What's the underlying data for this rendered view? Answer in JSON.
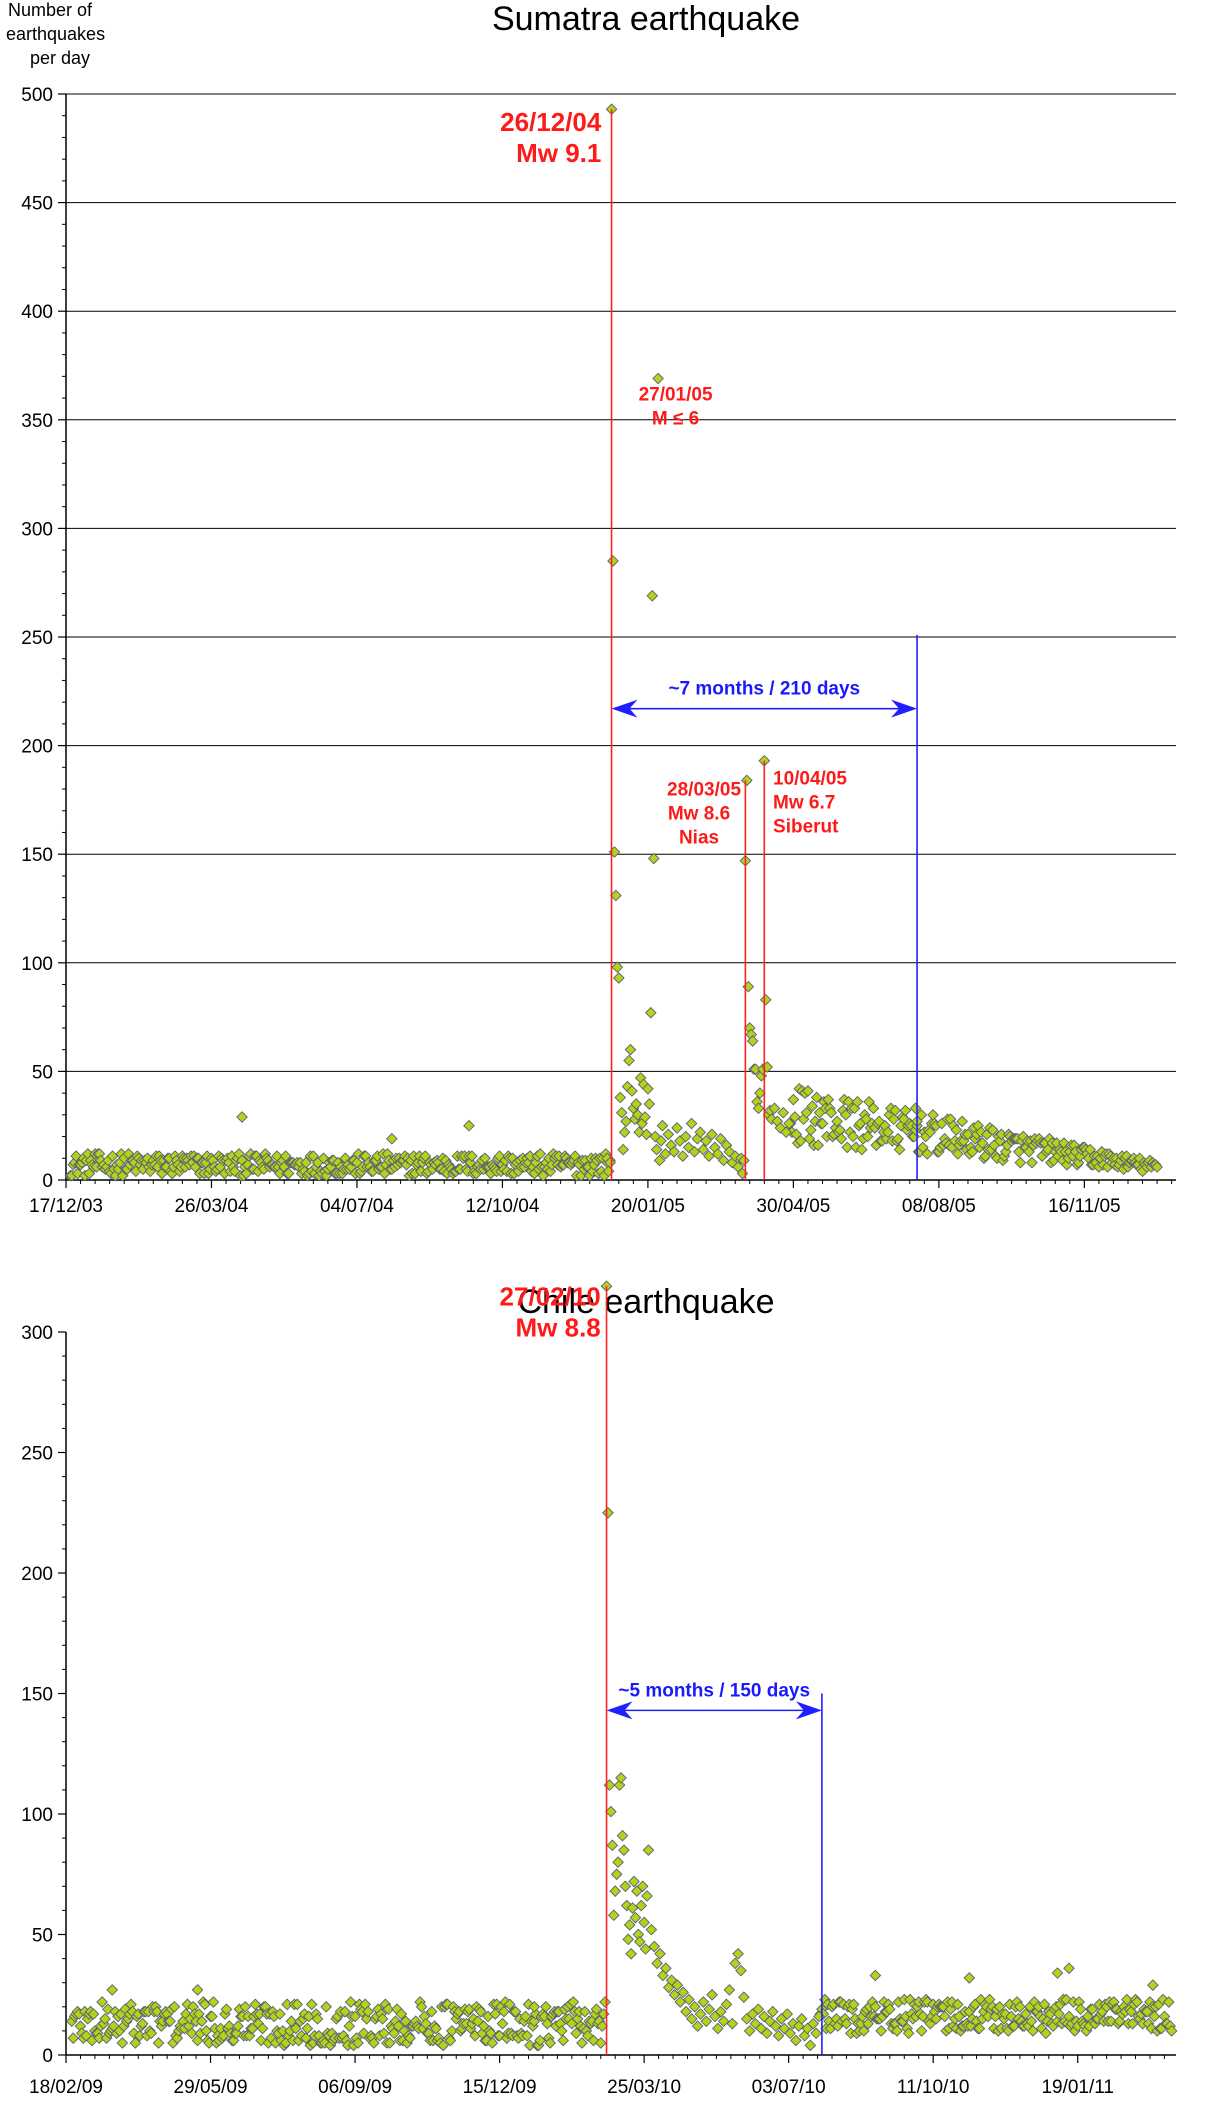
{
  "ylabel_lines": [
    "Number of",
    "earthquakes",
    "per day"
  ],
  "colors": {
    "marker_fill": "#b5d118",
    "marker_stroke": "#55607a",
    "event_line": "#ff2020",
    "window_line": "#2020ff",
    "grid": "#000000"
  },
  "chart_data": [
    {
      "type": "scatter",
      "title": "Sumatra earthquake",
      "x_start": "2003-12-17",
      "x_end": "2006-01-18",
      "xticks": [
        {
          "date": "2003-12-17",
          "label": "17/12/03"
        },
        {
          "date": "2004-03-26",
          "label": "26/03/04"
        },
        {
          "date": "2004-07-04",
          "label": "04/07/04"
        },
        {
          "date": "2004-10-12",
          "label": "12/10/04"
        },
        {
          "date": "2005-01-20",
          "label": "20/01/05"
        },
        {
          "date": "2005-04-30",
          "label": "30/04/05"
        },
        {
          "date": "2005-08-08",
          "label": "08/08/05"
        },
        {
          "date": "2005-11-16",
          "label": "16/11/05"
        }
      ],
      "ylim": [
        0,
        500
      ],
      "yticks": [
        0,
        50,
        100,
        150,
        200,
        250,
        300,
        350,
        400,
        450,
        500
      ],
      "grid": true,
      "baseline": {
        "from": "2003-12-20",
        "to": "2004-12-25",
        "min": 2,
        "max": 12
      },
      "aftershock_tail": {
        "from": "2005-04-28",
        "to": "2006-01-05",
        "start_level": 30,
        "end_level": 6
      },
      "points": [
        {
          "date": "2004-04-16",
          "value": 29
        },
        {
          "date": "2004-07-28",
          "value": 19
        },
        {
          "date": "2004-09-19",
          "value": 25
        },
        {
          "date": "2004-12-23",
          "value": 10
        },
        {
          "date": "2004-12-25",
          "value": 8
        },
        {
          "date": "2004-12-26",
          "value": 493
        },
        {
          "date": "2004-12-27",
          "value": 285
        },
        {
          "date": "2004-12-28",
          "value": 151
        },
        {
          "date": "2004-12-29",
          "value": 131
        },
        {
          "date": "2004-12-30",
          "value": 98
        },
        {
          "date": "2004-12-31",
          "value": 93
        },
        {
          "date": "2005-01-01",
          "value": 38
        },
        {
          "date": "2005-01-02",
          "value": 31
        },
        {
          "date": "2005-01-03",
          "value": 14
        },
        {
          "date": "2005-01-04",
          "value": 22
        },
        {
          "date": "2005-01-05",
          "value": 27
        },
        {
          "date": "2005-01-06",
          "value": 43
        },
        {
          "date": "2005-01-07",
          "value": 55
        },
        {
          "date": "2005-01-08",
          "value": 60
        },
        {
          "date": "2005-01-09",
          "value": 41
        },
        {
          "date": "2005-01-10",
          "value": 33
        },
        {
          "date": "2005-01-11",
          "value": 28
        },
        {
          "date": "2005-01-12",
          "value": 35
        },
        {
          "date": "2005-01-13",
          "value": 30
        },
        {
          "date": "2005-01-14",
          "value": 22
        },
        {
          "date": "2005-01-15",
          "value": 47
        },
        {
          "date": "2005-01-16",
          "value": 26
        },
        {
          "date": "2005-01-17",
          "value": 44
        },
        {
          "date": "2005-01-18",
          "value": 29
        },
        {
          "date": "2005-01-19",
          "value": 21
        },
        {
          "date": "2005-01-20",
          "value": 42
        },
        {
          "date": "2005-01-21",
          "value": 35
        },
        {
          "date": "2005-01-22",
          "value": 77
        },
        {
          "date": "2005-01-23",
          "value": 269
        },
        {
          "date": "2005-01-24",
          "value": 148
        },
        {
          "date": "2005-01-25",
          "value": 20
        },
        {
          "date": "2005-01-26",
          "value": 14
        },
        {
          "date": "2005-01-27",
          "value": 369
        },
        {
          "date": "2005-01-28",
          "value": 9
        },
        {
          "date": "2005-01-29",
          "value": 18
        },
        {
          "date": "2005-01-30",
          "value": 25
        },
        {
          "date": "2005-02-01",
          "value": 12
        },
        {
          "date": "2005-02-03",
          "value": 21
        },
        {
          "date": "2005-02-05",
          "value": 16
        },
        {
          "date": "2005-02-07",
          "value": 13
        },
        {
          "date": "2005-02-09",
          "value": 24
        },
        {
          "date": "2005-02-11",
          "value": 18
        },
        {
          "date": "2005-02-13",
          "value": 11
        },
        {
          "date": "2005-02-15",
          "value": 20
        },
        {
          "date": "2005-02-17",
          "value": 15
        },
        {
          "date": "2005-02-19",
          "value": 26
        },
        {
          "date": "2005-02-21",
          "value": 13
        },
        {
          "date": "2005-02-23",
          "value": 19
        },
        {
          "date": "2005-02-25",
          "value": 22
        },
        {
          "date": "2005-02-27",
          "value": 14
        },
        {
          "date": "2005-03-01",
          "value": 18
        },
        {
          "date": "2005-03-03",
          "value": 11
        },
        {
          "date": "2005-03-05",
          "value": 21
        },
        {
          "date": "2005-03-07",
          "value": 15
        },
        {
          "date": "2005-03-09",
          "value": 12
        },
        {
          "date": "2005-03-11",
          "value": 19
        },
        {
          "date": "2005-03-13",
          "value": 9
        },
        {
          "date": "2005-03-15",
          "value": 16
        },
        {
          "date": "2005-03-17",
          "value": 13
        },
        {
          "date": "2005-03-19",
          "value": 8
        },
        {
          "date": "2005-03-21",
          "value": 11
        },
        {
          "date": "2005-03-23",
          "value": 6
        },
        {
          "date": "2005-03-25",
          "value": 10
        },
        {
          "date": "2005-03-26",
          "value": 3
        },
        {
          "date": "2005-03-27",
          "value": 9
        },
        {
          "date": "2005-03-28",
          "value": 147
        },
        {
          "date": "2005-03-29",
          "value": 184
        },
        {
          "date": "2005-03-30",
          "value": 89
        },
        {
          "date": "2005-03-31",
          "value": 70
        },
        {
          "date": "2005-04-01",
          "value": 67
        },
        {
          "date": "2005-04-02",
          "value": 64
        },
        {
          "date": "2005-04-03",
          "value": 51
        },
        {
          "date": "2005-04-04",
          "value": 51
        },
        {
          "date": "2005-04-05",
          "value": 36
        },
        {
          "date": "2005-04-06",
          "value": 33
        },
        {
          "date": "2005-04-07",
          "value": 40
        },
        {
          "date": "2005-04-08",
          "value": 48
        },
        {
          "date": "2005-04-09",
          "value": 51
        },
        {
          "date": "2005-04-10",
          "value": 193
        },
        {
          "date": "2005-04-11",
          "value": 83
        },
        {
          "date": "2005-04-12",
          "value": 52
        },
        {
          "date": "2005-04-13",
          "value": 30
        },
        {
          "date": "2005-04-14",
          "value": 32
        },
        {
          "date": "2005-04-15",
          "value": 28
        },
        {
          "date": "2005-04-17",
          "value": 33
        },
        {
          "date": "2005-04-19",
          "value": 27
        },
        {
          "date": "2005-04-21",
          "value": 24
        },
        {
          "date": "2005-04-23",
          "value": 31
        },
        {
          "date": "2005-04-25",
          "value": 22
        },
        {
          "date": "2005-04-27",
          "value": 26
        },
        {
          "date": "2005-07-23",
          "value": 33
        },
        {
          "date": "2005-07-24",
          "value": 27
        }
      ],
      "vertical_lines": [
        {
          "date": "2004-12-26",
          "top": 493,
          "kind": "event"
        },
        {
          "date": "2005-03-28",
          "top": 184,
          "kind": "event"
        },
        {
          "date": "2005-04-10",
          "top": 193,
          "kind": "event"
        },
        {
          "date": "2005-07-24",
          "top": 251,
          "kind": "window"
        }
      ],
      "window_arrow": {
        "from": "2004-12-26",
        "to": "2005-07-24",
        "value": 217,
        "label": "~7 months / 210 days"
      },
      "annotations": [
        {
          "lines": [
            "26/12/04",
            "Mw 9.1"
          ],
          "size": "big",
          "align": "end",
          "date": "2004-12-19",
          "value": 483
        },
        {
          "lines": [
            "27/01/05",
            "M ≤ 6"
          ],
          "size": "small",
          "align": "middle",
          "date": "2005-02-08",
          "value": 359
        },
        {
          "lines": [
            "28/03/05",
            "Mw 8.6",
            "Nias"
          ],
          "size": "small",
          "align": "end",
          "date": "2005-03-25",
          "value": 177
        },
        {
          "lines": [
            "10/04/05",
            "Mw 6.7",
            "Siberut"
          ],
          "size": "small",
          "align": "start",
          "date": "2005-04-16",
          "value": 182
        }
      ]
    },
    {
      "type": "scatter",
      "title": "Chile earthquake",
      "x_start": "2009-02-18",
      "x_end": "2011-03-28",
      "xticks": [
        {
          "date": "2009-02-18",
          "label": "18/02/09"
        },
        {
          "date": "2009-05-29",
          "label": "29/05/09"
        },
        {
          "date": "2009-09-06",
          "label": "06/09/09"
        },
        {
          "date": "2009-12-15",
          "label": "15/12/09"
        },
        {
          "date": "2010-03-25",
          "label": "25/03/10"
        },
        {
          "date": "2010-07-03",
          "label": "03/07/10"
        },
        {
          "date": "2010-10-11",
          "label": "11/10/10"
        },
        {
          "date": "2011-01-19",
          "label": "19/01/11"
        }
      ],
      "ylim": [
        0,
        300
      ],
      "yticks": [
        0,
        50,
        100,
        150,
        200,
        250,
        300
      ],
      "grid": false,
      "baseline": {
        "from": "2009-02-22",
        "to": "2010-02-26",
        "min": 4,
        "max": 22
      },
      "aftershock_tail": {
        "from": "2010-07-25",
        "to": "2011-03-25",
        "start_level": 16,
        "end_level": 16
      },
      "points": [
        {
          "date": "2009-03-22",
          "value": 27
        },
        {
          "date": "2009-05-20",
          "value": 27
        },
        {
          "date": "2010-01-08",
          "value": 20
        },
        {
          "date": "2010-02-27",
          "value": 319
        },
        {
          "date": "2010-02-28",
          "value": 225
        },
        {
          "date": "2010-03-01",
          "value": 112
        },
        {
          "date": "2010-03-02",
          "value": 101
        },
        {
          "date": "2010-03-03",
          "value": 87
        },
        {
          "date": "2010-03-04",
          "value": 58
        },
        {
          "date": "2010-03-05",
          "value": 68
        },
        {
          "date": "2010-03-06",
          "value": 75
        },
        {
          "date": "2010-03-07",
          "value": 80
        },
        {
          "date": "2010-03-08",
          "value": 112
        },
        {
          "date": "2010-03-09",
          "value": 115
        },
        {
          "date": "2010-03-10",
          "value": 91
        },
        {
          "date": "2010-03-11",
          "value": 85
        },
        {
          "date": "2010-03-12",
          "value": 70
        },
        {
          "date": "2010-03-13",
          "value": 62
        },
        {
          "date": "2010-03-14",
          "value": 48
        },
        {
          "date": "2010-03-15",
          "value": 54
        },
        {
          "date": "2010-03-16",
          "value": 42
        },
        {
          "date": "2010-03-17",
          "value": 61
        },
        {
          "date": "2010-03-18",
          "value": 72
        },
        {
          "date": "2010-03-19",
          "value": 57
        },
        {
          "date": "2010-03-20",
          "value": 68
        },
        {
          "date": "2010-03-21",
          "value": 50
        },
        {
          "date": "2010-03-22",
          "value": 47
        },
        {
          "date": "2010-03-23",
          "value": 62
        },
        {
          "date": "2010-03-24",
          "value": 70
        },
        {
          "date": "2010-03-25",
          "value": 55
        },
        {
          "date": "2010-03-26",
          "value": 44
        },
        {
          "date": "2010-03-27",
          "value": 66
        },
        {
          "date": "2010-03-28",
          "value": 85
        },
        {
          "date": "2010-03-30",
          "value": 52
        },
        {
          "date": "2010-04-01",
          "value": 45
        },
        {
          "date": "2010-04-03",
          "value": 38
        },
        {
          "date": "2010-04-05",
          "value": 42
        },
        {
          "date": "2010-04-07",
          "value": 33
        },
        {
          "date": "2010-04-09",
          "value": 36
        },
        {
          "date": "2010-04-11",
          "value": 28
        },
        {
          "date": "2010-04-13",
          "value": 31
        },
        {
          "date": "2010-04-15",
          "value": 25
        },
        {
          "date": "2010-04-17",
          "value": 29
        },
        {
          "date": "2010-04-19",
          "value": 22
        },
        {
          "date": "2010-04-21",
          "value": 26
        },
        {
          "date": "2010-04-23",
          "value": 18
        },
        {
          "date": "2010-04-25",
          "value": 23
        },
        {
          "date": "2010-04-27",
          "value": 15
        },
        {
          "date": "2010-04-29",
          "value": 20
        },
        {
          "date": "2010-05-01",
          "value": 12
        },
        {
          "date": "2010-05-03",
          "value": 17
        },
        {
          "date": "2010-05-05",
          "value": 22
        },
        {
          "date": "2010-05-07",
          "value": 14
        },
        {
          "date": "2010-05-09",
          "value": 19
        },
        {
          "date": "2010-05-11",
          "value": 25
        },
        {
          "date": "2010-05-13",
          "value": 16
        },
        {
          "date": "2010-05-15",
          "value": 11
        },
        {
          "date": "2010-05-17",
          "value": 18
        },
        {
          "date": "2010-05-19",
          "value": 14
        },
        {
          "date": "2010-05-21",
          "value": 21
        },
        {
          "date": "2010-05-23",
          "value": 27
        },
        {
          "date": "2010-05-25",
          "value": 13
        },
        {
          "date": "2010-05-27",
          "value": 38
        },
        {
          "date": "2010-05-29",
          "value": 42
        },
        {
          "date": "2010-05-31",
          "value": 35
        },
        {
          "date": "2010-06-02",
          "value": 24
        },
        {
          "date": "2010-06-04",
          "value": 15
        },
        {
          "date": "2010-06-06",
          "value": 10
        },
        {
          "date": "2010-06-08",
          "value": 17
        },
        {
          "date": "2010-06-10",
          "value": 13
        },
        {
          "date": "2010-06-12",
          "value": 19
        },
        {
          "date": "2010-06-14",
          "value": 11
        },
        {
          "date": "2010-06-16",
          "value": 16
        },
        {
          "date": "2010-06-18",
          "value": 9
        },
        {
          "date": "2010-06-20",
          "value": 14
        },
        {
          "date": "2010-06-22",
          "value": 18
        },
        {
          "date": "2010-06-24",
          "value": 12
        },
        {
          "date": "2010-06-26",
          "value": 8
        },
        {
          "date": "2010-06-28",
          "value": 15
        },
        {
          "date": "2010-06-30",
          "value": 11
        },
        {
          "date": "2010-07-02",
          "value": 17
        },
        {
          "date": "2010-07-04",
          "value": 9
        },
        {
          "date": "2010-07-06",
          "value": 13
        },
        {
          "date": "2010-07-08",
          "value": 6
        },
        {
          "date": "2010-07-10",
          "value": 12
        },
        {
          "date": "2010-07-12",
          "value": 15
        },
        {
          "date": "2010-07-14",
          "value": 8
        },
        {
          "date": "2010-07-16",
          "value": 11
        },
        {
          "date": "2010-07-18",
          "value": 4
        },
        {
          "date": "2010-07-20",
          "value": 13
        },
        {
          "date": "2010-07-22",
          "value": 9
        },
        {
          "date": "2010-07-24",
          "value": 16
        },
        {
          "date": "2010-09-01",
          "value": 33
        },
        {
          "date": "2010-11-05",
          "value": 32
        },
        {
          "date": "2011-01-05",
          "value": 34
        },
        {
          "date": "2011-01-13",
          "value": 36
        },
        {
          "date": "2011-03-12",
          "value": 29
        }
      ],
      "vertical_lines": [
        {
          "date": "2010-02-27",
          "top": 319,
          "kind": "event"
        },
        {
          "date": "2010-07-26",
          "top": 150,
          "kind": "window"
        }
      ],
      "window_arrow": {
        "from": "2010-02-27",
        "to": "2010-07-26",
        "value": 143,
        "label": "~5 months / 150 days"
      },
      "annotations": [
        {
          "lines": [
            "27/02/10",
            "Mw 8.8"
          ],
          "size": "big",
          "align": "end",
          "date": "2010-02-23",
          "value": 311
        }
      ]
    }
  ]
}
